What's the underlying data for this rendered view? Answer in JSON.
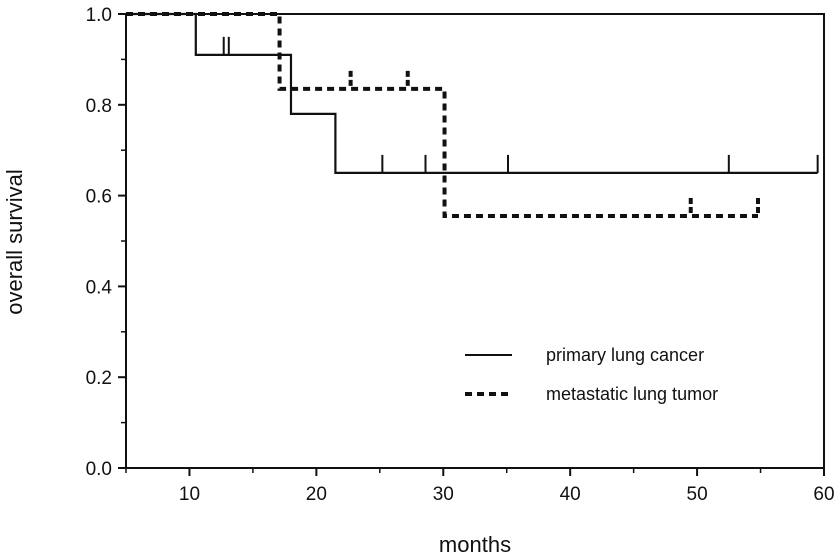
{
  "chart_data": {
    "type": "line",
    "title": "",
    "xlabel": "months",
    "ylabel": "overall survival",
    "xlim": [
      5,
      60
    ],
    "ylim": [
      0,
      1
    ],
    "x_ticks": [
      10,
      20,
      30,
      40,
      50,
      60
    ],
    "x_tick_labels": [
      "10",
      "20",
      "30",
      "40",
      "50",
      "60"
    ],
    "x_minor_step": 5,
    "y_ticks": [
      0,
      0.2,
      0.4,
      0.6,
      0.8,
      1.0
    ],
    "y_tick_labels": [
      "0.0",
      "0.2",
      "0.4",
      "0.6",
      "0.8",
      "1.0"
    ],
    "y_minor_step": 0.1,
    "grid": false,
    "legend_position": "lower-right",
    "series": [
      {
        "name": "primary lung cancer",
        "style": "solid",
        "color": "#111111",
        "steps": [
          {
            "x": 5,
            "y": 1.0
          },
          {
            "x": 10.5,
            "y": 0.91
          },
          {
            "x": 18,
            "y": 0.78
          },
          {
            "x": 21.5,
            "y": 0.65
          }
        ],
        "end_x": 59.5,
        "censored": [
          {
            "x": 12.7,
            "y": 0.91
          },
          {
            "x": 13.1,
            "y": 0.91
          },
          {
            "x": 25.2,
            "y": 0.65
          },
          {
            "x": 28.6,
            "y": 0.65
          },
          {
            "x": 35.1,
            "y": 0.65
          },
          {
            "x": 52.5,
            "y": 0.65
          },
          {
            "x": 59.5,
            "y": 0.65
          }
        ]
      },
      {
        "name": "metastatic lung tumor",
        "style": "dashed",
        "color": "#111111",
        "steps": [
          {
            "x": 5,
            "y": 1.0
          },
          {
            "x": 17.1,
            "y": 0.835
          },
          {
            "x": 30.1,
            "y": 0.555
          }
        ],
        "end_x": 54.8,
        "censored": [
          {
            "x": 22.7,
            "y": 0.835
          },
          {
            "x": 27.2,
            "y": 0.835
          },
          {
            "x": 49.5,
            "y": 0.555
          },
          {
            "x": 54.8,
            "y": 0.555
          }
        ]
      }
    ]
  }
}
